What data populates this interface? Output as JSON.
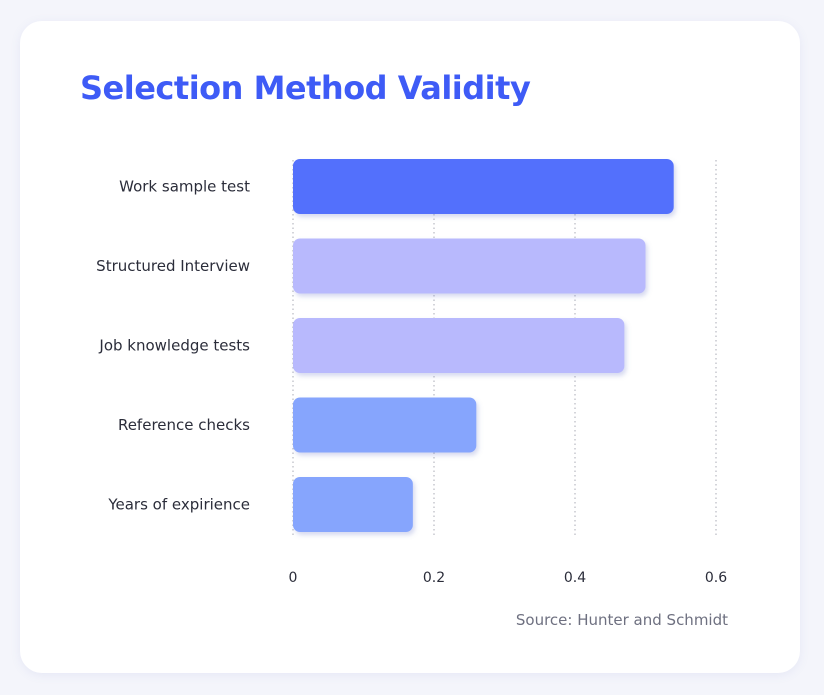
{
  "chart_data": {
    "type": "bar",
    "orientation": "horizontal",
    "title": "Selection Method Validity",
    "categories": [
      "Work sample test",
      "Structured Interview",
      "Job knowledge tests",
      "Reference checks",
      "Years of expirience"
    ],
    "values": [
      0.54,
      0.5,
      0.47,
      0.26,
      0.17
    ],
    "bar_colors": [
      "#526ffc",
      "#b8b9fd",
      "#b8b9fd",
      "#86a5fd",
      "#86a5fd"
    ],
    "xticks": [
      "0",
      "0.2",
      "0.4",
      "0.6"
    ],
    "xlim": [
      0,
      0.6
    ],
    "grid": "vertical dotted",
    "source": "Source: Hunter and Schmidt"
  }
}
